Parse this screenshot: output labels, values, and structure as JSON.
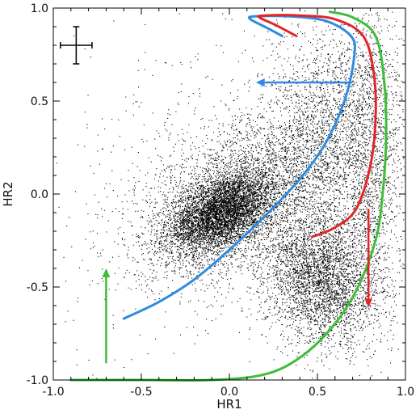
{
  "chart_data": {
    "type": "scatter",
    "title": "",
    "xlabel": "HR1",
    "ylabel": "HR2",
    "xlim": [
      -1.0,
      1.0
    ],
    "ylim": [
      -1.0,
      1.0
    ],
    "grid": false,
    "x_ticks": [
      "-1.0",
      "-0.5",
      "0.0",
      "0.5",
      "1.0"
    ],
    "x_tick_values": [
      -1.0,
      -0.5,
      0.0,
      0.5,
      1.0
    ],
    "y_ticks": [
      "-1.0",
      "-0.5",
      "0.0",
      "0.5",
      "1.0"
    ],
    "y_tick_values": [
      -1.0,
      -0.5,
      0.0,
      0.5,
      1.0
    ],
    "point_color": "#000000",
    "point_clusters": [
      {
        "cx": -0.05,
        "cy": -0.1,
        "sx": 0.15,
        "sy": 0.11,
        "rho": 0.45,
        "n": 5200
      },
      {
        "cx": 0.1,
        "cy": 0.0,
        "sx": 0.32,
        "sy": 0.24,
        "rho": 0.45,
        "n": 3200
      },
      {
        "cx": 0.52,
        "cy": -0.45,
        "sx": 0.16,
        "sy": 0.18,
        "rho": -0.1,
        "n": 3500
      },
      {
        "cx": 0.58,
        "cy": 0.35,
        "sx": 0.22,
        "sy": 0.3,
        "rho": 0.2,
        "n": 2200
      },
      {
        "cx": 0.8,
        "cy": 0.1,
        "sx": 0.09,
        "sy": 0.45,
        "rho": 0.0,
        "n": 1200
      },
      {
        "cx": 0.0,
        "cy": 0.1,
        "sx": 0.55,
        "sy": 0.45,
        "rho": 0.3,
        "n": 700
      }
    ],
    "error_bar": {
      "x": -0.87,
      "y": 0.8,
      "xerr": 0.09,
      "yerr": 0.1,
      "color": "#000000"
    },
    "curves": [
      {
        "color": "#2f8be0",
        "points": [
          [
            -0.6,
            -0.67
          ],
          [
            -0.4,
            -0.58
          ],
          [
            -0.2,
            -0.46
          ],
          [
            0.0,
            -0.3
          ],
          [
            0.2,
            -0.12
          ],
          [
            0.4,
            0.08
          ],
          [
            0.55,
            0.28
          ],
          [
            0.66,
            0.52
          ],
          [
            0.71,
            0.75
          ],
          [
            0.69,
            0.85
          ],
          [
            0.55,
            0.93
          ],
          [
            0.35,
            0.955
          ],
          [
            0.14,
            0.955
          ],
          [
            0.12,
            0.94
          ],
          [
            0.2,
            0.9
          ],
          [
            0.3,
            0.85
          ]
        ]
      },
      {
        "color": "#e0262a",
        "points": [
          [
            0.47,
            -0.23
          ],
          [
            0.6,
            -0.18
          ],
          [
            0.72,
            -0.08
          ],
          [
            0.8,
            0.15
          ],
          [
            0.83,
            0.4
          ],
          [
            0.82,
            0.65
          ],
          [
            0.76,
            0.85
          ],
          [
            0.6,
            0.94
          ],
          [
            0.4,
            0.96
          ],
          [
            0.2,
            0.96
          ],
          [
            0.17,
            0.95
          ],
          [
            0.26,
            0.91
          ],
          [
            0.38,
            0.85
          ]
        ]
      },
      {
        "color": "#3dbe38",
        "points": [
          [
            -0.9,
            -1.0
          ],
          [
            -0.5,
            -1.0
          ],
          [
            -0.1,
            -1.0
          ],
          [
            0.2,
            -0.97
          ],
          [
            0.4,
            -0.88
          ],
          [
            0.58,
            -0.72
          ],
          [
            0.72,
            -0.52
          ],
          [
            0.83,
            -0.25
          ],
          [
            0.87,
            0.0
          ],
          [
            0.89,
            0.3
          ],
          [
            0.88,
            0.6
          ],
          [
            0.83,
            0.85
          ],
          [
            0.7,
            0.95
          ],
          [
            0.57,
            0.98
          ]
        ]
      }
    ],
    "arrows": [
      {
        "color": "#2f8be0",
        "from": [
          0.7,
          0.6
        ],
        "to": [
          0.15,
          0.6
        ]
      },
      {
        "color": "#3dbe38",
        "from": [
          -0.7,
          -0.91
        ],
        "to": [
          -0.7,
          -0.4
        ]
      },
      {
        "color": "#e0262a",
        "from": [
          0.79,
          -0.08
        ],
        "to": [
          0.79,
          -0.61
        ]
      }
    ]
  }
}
